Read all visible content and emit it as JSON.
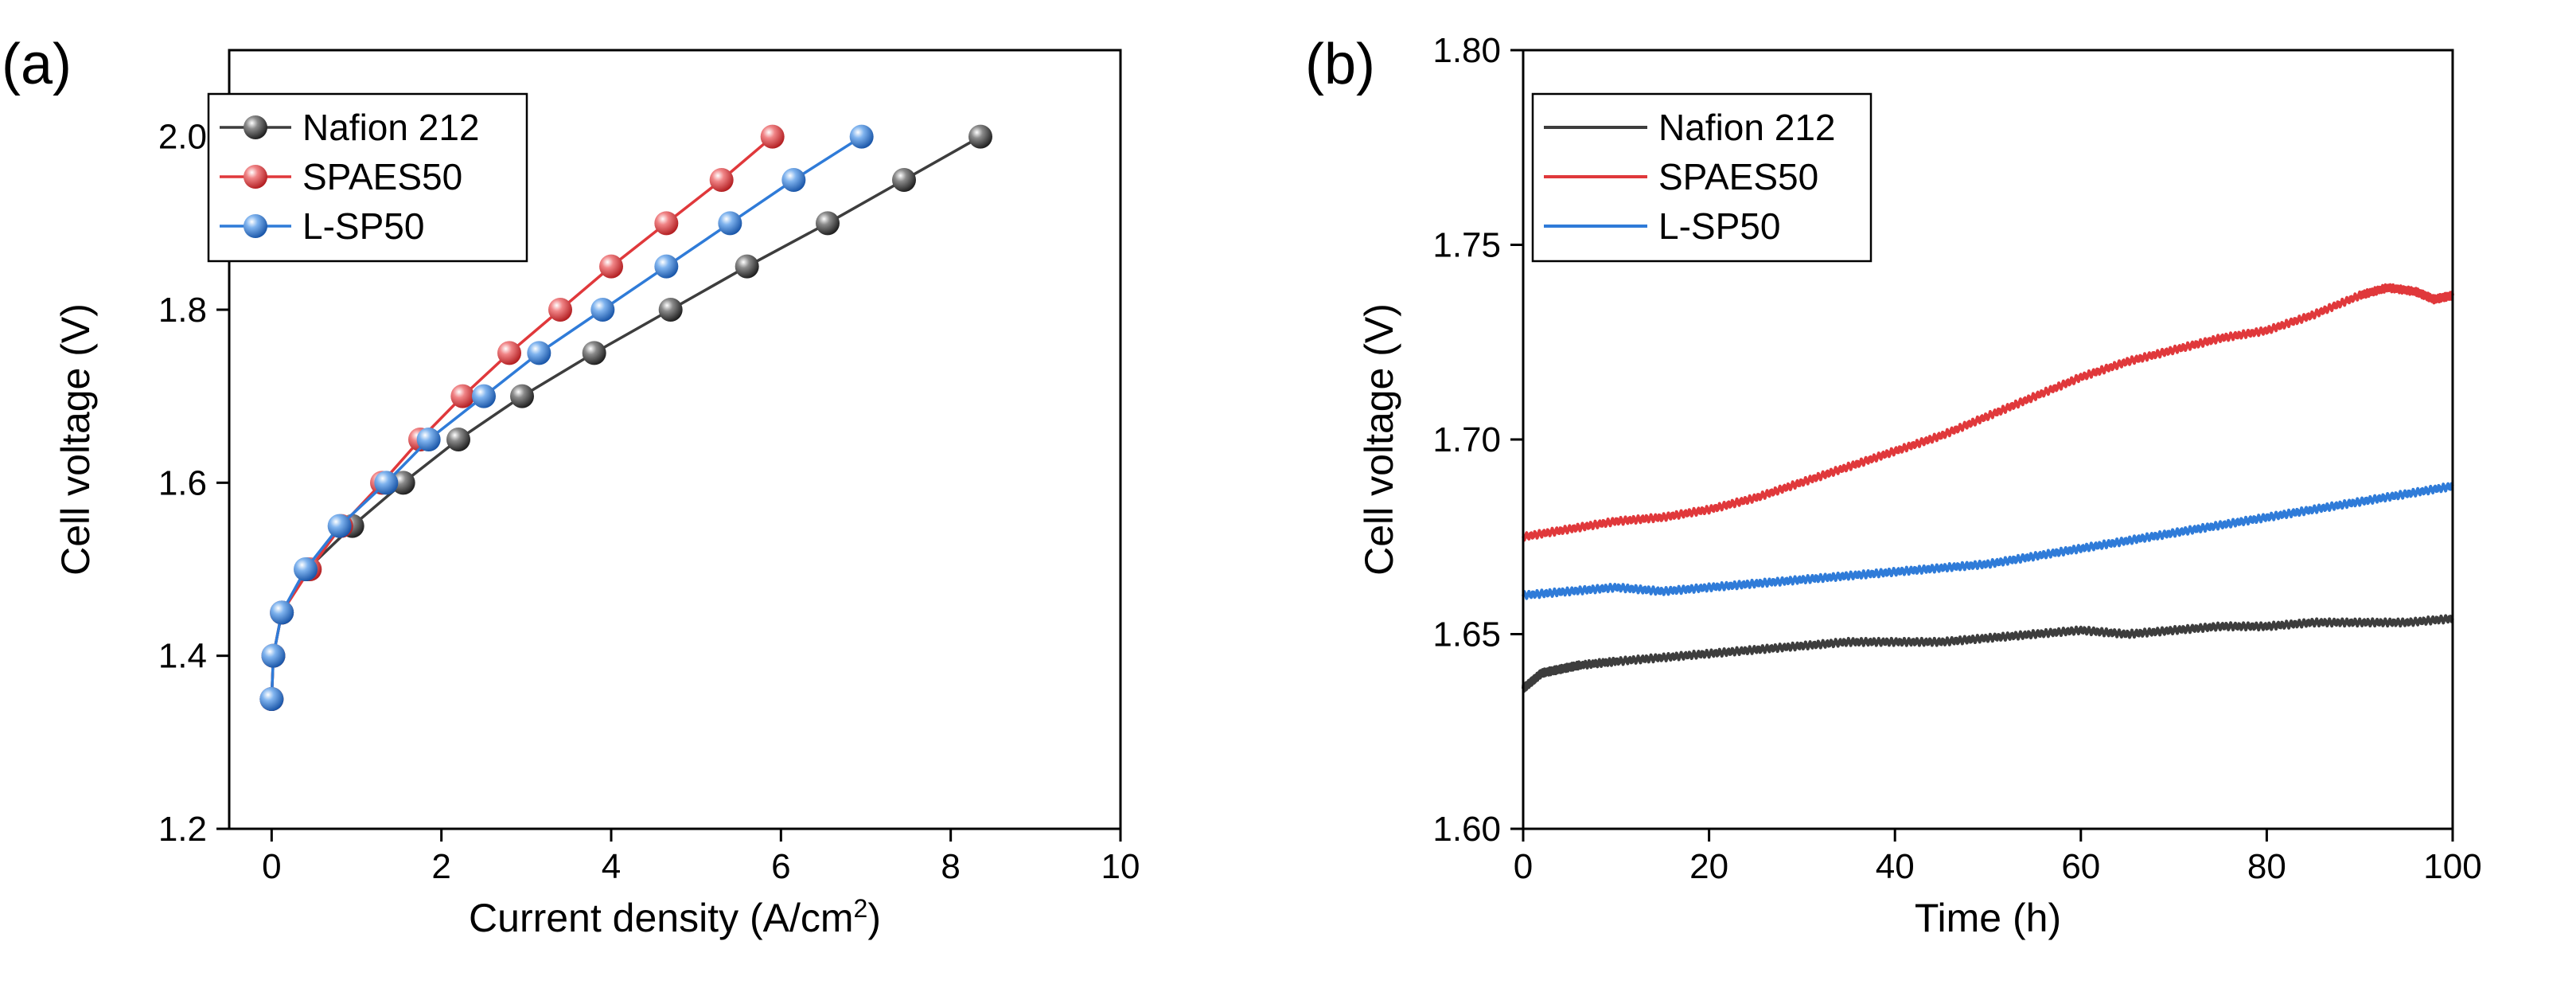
{
  "chart_data": [
    {
      "panel": "(a)",
      "type": "line",
      "xlabel": "Current density (A/cm",
      "xlabel_sup": "2",
      "xlabel_end": ")",
      "ylabel": "Cell voltage (V)",
      "xlim": [
        -0.5,
        10
      ],
      "ylim": [
        1.2,
        2.1
      ],
      "xticks": [
        0,
        2,
        4,
        6,
        8,
        10
      ],
      "yticks": [
        1.2,
        1.4,
        1.6,
        1.8,
        2.0
      ],
      "xtick_labels": [
        "0",
        "2",
        "4",
        "6",
        "8",
        "10"
      ],
      "ytick_labels": [
        "1.2",
        "1.4",
        "1.6",
        "1.8",
        "2.0"
      ],
      "legend_position": "top-left",
      "series": [
        {
          "name": "Nafion 212",
          "color": "#3d3d3d",
          "marker": "sphere",
          "x": [
            0.0,
            0.02,
            0.12,
            0.42,
            0.95,
            1.55,
            2.2,
            2.95,
            3.8,
            4.7,
            5.6,
            6.55,
            7.45,
            8.35
          ],
          "y": [
            1.35,
            1.4,
            1.45,
            1.5,
            1.55,
            1.6,
            1.65,
            1.7,
            1.75,
            1.8,
            1.85,
            1.9,
            1.95,
            2.0
          ]
        },
        {
          "name": "SPAES50",
          "color": "#e0383b",
          "marker": "sphere",
          "x": [
            0.0,
            0.02,
            0.12,
            0.45,
            0.82,
            1.3,
            1.75,
            2.25,
            2.8,
            3.4,
            4.0,
            4.65,
            5.3,
            5.9
          ],
          "y": [
            1.35,
            1.4,
            1.45,
            1.5,
            1.55,
            1.6,
            1.65,
            1.7,
            1.75,
            1.8,
            1.85,
            1.9,
            1.95,
            2.0
          ]
        },
        {
          "name": "L-SP50",
          "color": "#2f7bd8",
          "marker": "sphere",
          "x": [
            0.0,
            0.02,
            0.12,
            0.4,
            0.8,
            1.35,
            1.85,
            2.5,
            3.15,
            3.9,
            4.65,
            5.4,
            6.15,
            6.95
          ],
          "y": [
            1.35,
            1.4,
            1.45,
            1.5,
            1.55,
            1.6,
            1.65,
            1.7,
            1.75,
            1.8,
            1.85,
            1.9,
            1.95,
            2.0
          ]
        }
      ]
    },
    {
      "panel": "(b)",
      "type": "line",
      "xlabel": "Time (h)",
      "ylabel": "Cell voltage (V)",
      "xlim": [
        0,
        100
      ],
      "ylim": [
        1.6,
        1.8
      ],
      "xticks": [
        0,
        20,
        40,
        60,
        80,
        100
      ],
      "yticks": [
        1.6,
        1.65,
        1.7,
        1.75,
        1.8
      ],
      "xtick_labels": [
        "0",
        "20",
        "40",
        "60",
        "80",
        "100"
      ],
      "ytick_labels": [
        "1.60",
        "1.65",
        "1.70",
        "1.75",
        "1.80"
      ],
      "legend_position": "top-left",
      "series": [
        {
          "name": "Nafion 212",
          "color": "#3d3d3d",
          "x": [
            0,
            1,
            2,
            4,
            6,
            10,
            15,
            20,
            25,
            30,
            35,
            40,
            45,
            50,
            55,
            60,
            65,
            70,
            75,
            80,
            85,
            90,
            95,
            100
          ],
          "y": [
            1.636,
            1.638,
            1.64,
            1.641,
            1.642,
            1.643,
            1.644,
            1.645,
            1.646,
            1.647,
            1.648,
            1.648,
            1.648,
            1.649,
            1.65,
            1.651,
            1.65,
            1.651,
            1.652,
            1.652,
            1.653,
            1.653,
            1.653,
            1.654
          ]
        },
        {
          "name": "SPAES50",
          "color": "#e0383b",
          "x": [
            0,
            5,
            10,
            15,
            20,
            25,
            30,
            35,
            40,
            45,
            50,
            55,
            60,
            65,
            70,
            75,
            80,
            85,
            90,
            93,
            96,
            98,
            100
          ],
          "y": [
            1.675,
            1.677,
            1.679,
            1.68,
            1.682,
            1.685,
            1.689,
            1.693,
            1.697,
            1.701,
            1.706,
            1.711,
            1.716,
            1.72,
            1.723,
            1.726,
            1.728,
            1.732,
            1.737,
            1.739,
            1.738,
            1.736,
            1.737
          ]
        },
        {
          "name": "L-SP50",
          "color": "#2f7bd8",
          "x": [
            0,
            5,
            10,
            15,
            20,
            25,
            30,
            35,
            40,
            45,
            50,
            55,
            60,
            65,
            70,
            75,
            80,
            85,
            90,
            95,
            100
          ],
          "y": [
            1.66,
            1.661,
            1.662,
            1.661,
            1.662,
            1.663,
            1.664,
            1.665,
            1.666,
            1.667,
            1.668,
            1.67,
            1.672,
            1.674,
            1.676,
            1.678,
            1.68,
            1.682,
            1.684,
            1.686,
            1.688
          ]
        }
      ]
    }
  ]
}
